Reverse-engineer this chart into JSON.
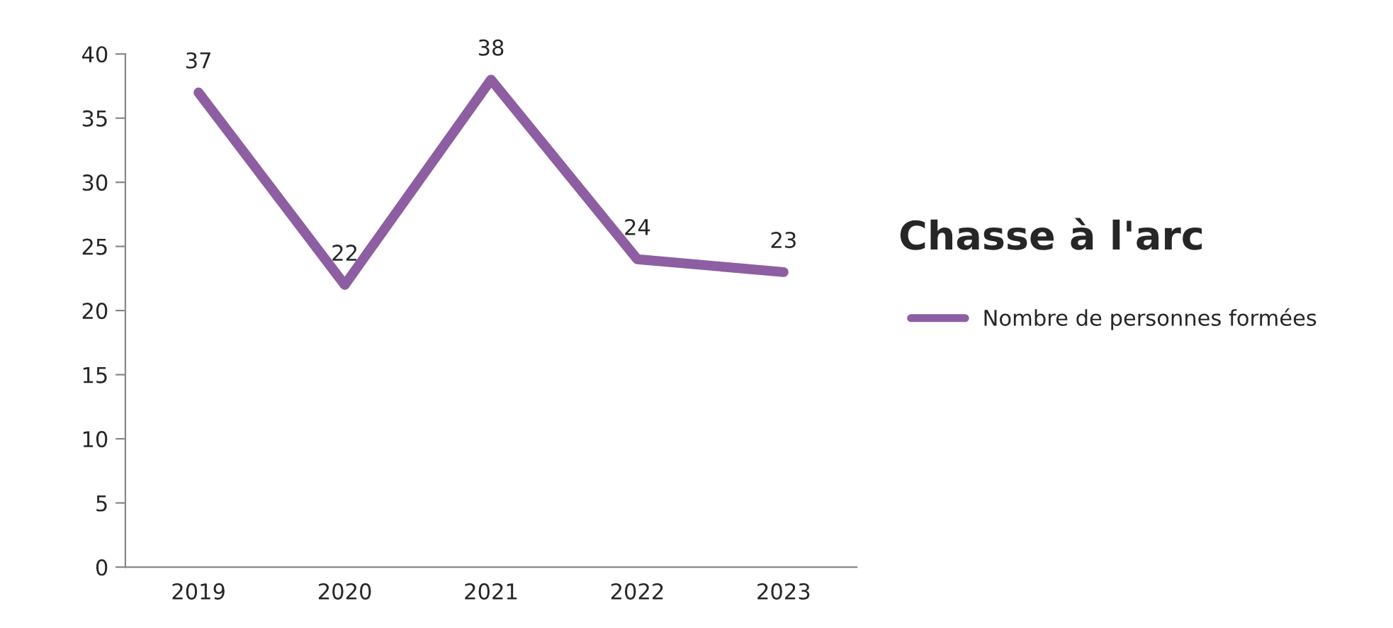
{
  "chart_data": {
    "type": "line",
    "title": "Chasse à l'arc",
    "categories": [
      "2019",
      "2020",
      "2021",
      "2022",
      "2023"
    ],
    "series": [
      {
        "name": "Nombre de personnes formées",
        "color": "#8e5ea2",
        "values": [
          37,
          22,
          38,
          24,
          23
        ]
      }
    ],
    "ylim": [
      0,
      40
    ],
    "yticks": [
      0,
      5,
      10,
      15,
      20,
      25,
      30,
      35,
      40
    ],
    "data_labels": true,
    "grid": false,
    "legend": "right",
    "marker": "none",
    "line_style": "solid"
  }
}
